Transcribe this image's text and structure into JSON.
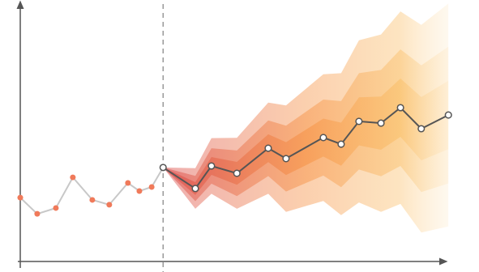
{
  "chart_data": {
    "type": "fan",
    "xlim": [
      0,
      100
    ],
    "ylim": [
      0,
      100
    ],
    "divider_x": 33.7,
    "history": {
      "x": [
        0,
        4.0,
        8.4,
        12.4,
        17.0,
        21.0,
        25.4,
        28.1,
        31.0,
        33.7
      ],
      "values": [
        25.2,
        18.8,
        21.1,
        33.2,
        24.3,
        22.4,
        31.0,
        27.8,
        29.4,
        37.1
      ],
      "color": "#f07a5a"
    },
    "forecast": {
      "x": [
        33.7,
        41.3,
        45.1,
        51.1,
        58.5,
        62.7,
        71.5,
        75.7,
        79.9,
        85.1,
        89.7,
        94.6,
        101.0
      ],
      "values": [
        37.1,
        28.8,
        37.7,
        34.8,
        44.7,
        40.6,
        48.9,
        46.3,
        55.3,
        54.6,
        60.7,
        52.4,
        57.8
      ],
      "color": "#555555"
    },
    "bands": [
      {
        "upper": [
          37.1,
          36.8,
          48.7,
          48.8,
          62.7,
          61.6,
          73.9,
          74.3,
          87.3,
          89.6,
          98.7,
          93.4,
          101.8
        ],
        "lower": [
          37.1,
          20.8,
          26.7,
          20.8,
          26.7,
          19.6,
          23.9,
          18.3,
          23.3,
          19.6,
          22.7,
          11.4,
          13.8
        ]
      },
      {
        "upper": [
          37.1,
          33.8,
          44.7,
          43.8,
          55.7,
          53.6,
          63.9,
          63.3,
          74.3,
          75.6,
          83.7,
          77.4,
          84.8
        ],
        "lower": [
          37.1,
          23.8,
          30.7,
          25.8,
          33.7,
          27.6,
          33.9,
          29.3,
          36.3,
          33.6,
          37.7,
          27.4,
          30.8
        ]
      },
      {
        "upper": [
          37.1,
          31.3,
          41.2,
          39.3,
          50.2,
          47.1,
          56.4,
          54.8,
          64.8,
          65.1,
          72.2,
          64.9,
          71.3
        ],
        "lower": [
          37.1,
          26.3,
          34.2,
          30.3,
          39.2,
          34.1,
          41.4,
          37.8,
          45.8,
          44.1,
          49.2,
          39.9,
          44.3
        ]
      }
    ]
  }
}
